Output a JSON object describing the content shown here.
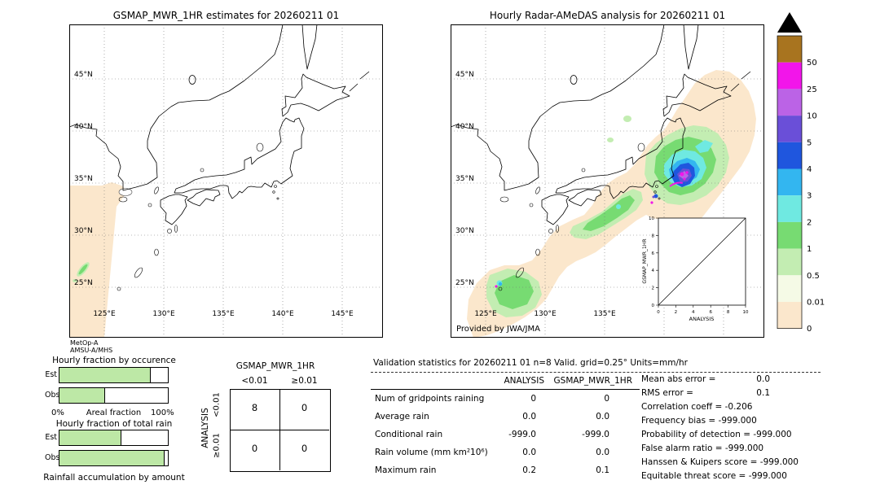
{
  "left_map": {
    "title": "GSMAP_MWR_1HR estimates for 20260211 01",
    "sensor_line1": "MetOp-A",
    "sensor_line2": "AMSU-A/MHS"
  },
  "right_map": {
    "title": "Hourly Radar-AMeDAS analysis for 20260211 01",
    "credit": "Provided by JWA/JMA"
  },
  "grid": {
    "lat_labels": [
      "45°N",
      "40°N",
      "35°N",
      "30°N",
      "25°N"
    ],
    "lon_labels": [
      "125°E",
      "130°E",
      "135°E",
      "140°E",
      "145°E"
    ]
  },
  "inset": {
    "y_label": "GSMAP_MWR_1HR",
    "x_label": "ANALYSIS",
    "ticks": [
      "0",
      "2",
      "4",
      "6",
      "8",
      "10"
    ]
  },
  "colorbar": {
    "units": "mm/hr",
    "labels": [
      "50",
      "25",
      "10",
      "5",
      "4",
      "3",
      "2",
      "1",
      "0.5",
      "0.01",
      "0"
    ],
    "colors_top_to_bottom": [
      "#A8741F",
      "#F215EA",
      "#BB63E6",
      "#6A4FD8",
      "#1F56DE",
      "#33B6F0",
      "#6FE9E1",
      "#77DB72",
      "#C3EDB2",
      "#F5FAE6",
      "#FBE7CC"
    ]
  },
  "fractions": {
    "occurrence_title": "Hourly fraction by occurence",
    "total_title": "Hourly fraction of total rain",
    "areal_label": "Areal fraction",
    "amount_label": "Rainfall accumulation by amount",
    "pct0": "0%",
    "pct100": "100%",
    "est_label": "Est",
    "obs_label": "Obs",
    "occurrence": {
      "est": 0.84,
      "obs": 0.42
    },
    "total": {
      "est": 0.57,
      "obs": 0.97
    }
  },
  "contingency": {
    "title": "GSMAP_MWR_1HR",
    "col_headers": [
      "<0.01",
      "≥0.01"
    ],
    "row_headers": [
      "<0.01",
      "≥0.01"
    ],
    "side_label": "ANALYSIS",
    "values": [
      [
        "8",
        "0"
      ],
      [
        "0",
        "0"
      ]
    ]
  },
  "stats": {
    "title": "Validation statistics for 20260211 01  n=8 Valid. grid=0.25°  Units=mm/hr",
    "col1": "ANALYSIS",
    "col2": "GSMAP_MWR_1HR",
    "rows": [
      {
        "label": "Num of gridpoints raining",
        "analysis": "0",
        "gsmap": "0"
      },
      {
        "label": "Average rain",
        "analysis": "0.0",
        "gsmap": "0.0"
      },
      {
        "label": "Conditional rain",
        "analysis": "-999.0",
        "gsmap": "-999.0"
      },
      {
        "label": "Rain volume (mm km²10⁶)",
        "analysis": "0.0",
        "gsmap": "0.0"
      },
      {
        "label": "Maximum rain",
        "analysis": "0.2",
        "gsmap": "0.1"
      }
    ],
    "extra": [
      {
        "label": "Mean abs error =",
        "value": "0.0"
      },
      {
        "label": "RMS error =",
        "value": "0.1"
      },
      {
        "label": "Correlation coeff = -0.206",
        "value": ""
      },
      {
        "label": "Frequency bias = -999.000",
        "value": ""
      },
      {
        "label": "Probability of detection = -999.000",
        "value": ""
      },
      {
        "label": "False alarm ratio = -999.000",
        "value": ""
      },
      {
        "label": "Hanssen & Kuipers score = -999.000",
        "value": ""
      },
      {
        "label": "Equitable threat score = -999.000",
        "value": ""
      }
    ]
  },
  "chart_data": [
    {
      "type": "heatmap",
      "title": "GSMAP_MWR_1HR estimates for 20260211 01",
      "x_ticks": [
        "125°E",
        "130°E",
        "135°E",
        "140°E",
        "145°E"
      ],
      "y_ticks": [
        "25°N",
        "30°N",
        "35°N",
        "40°N",
        "45°N"
      ],
      "legend_position": "right colorbar",
      "notes": "MetOp-A AMSU-A/MHS swath wedge west of Kyushu with ~0 mm/hr (peach) and a thin 0.5-1 mm/hr green streak near 27N 123E"
    },
    {
      "type": "heatmap",
      "title": "Hourly Radar-AMeDAS analysis for 20260211 01",
      "x_ticks": [
        "125°E",
        "130°E",
        "135°E"
      ],
      "y_ticks": [
        "25°N",
        "30°N",
        "35°N",
        "40°N",
        "45°N"
      ],
      "notes": "Broad 0-0.5 mm/hr rain shield from southwest islands northeast to east of Hokkaido; embedded 1-5 mm/hr cells; cores 10-50 mm/hr (blue/purple/magenta) offshore east of Honshu near 35-37N 140-142E; small intense cell near 25.5N 126E"
    },
    {
      "type": "bar",
      "title": "Hourly fraction by occurence",
      "categories": [
        "Est",
        "Obs"
      ],
      "values": [
        0.84,
        0.42
      ],
      "xlabel": "Areal fraction",
      "xlim": [
        0,
        1
      ]
    },
    {
      "type": "bar",
      "title": "Hourly fraction of total rain",
      "categories": [
        "Est",
        "Obs"
      ],
      "values": [
        0.57,
        0.97
      ],
      "xlabel": "Rainfall accumulation by amount",
      "xlim": [
        0,
        1
      ]
    },
    {
      "type": "table",
      "title": "Contingency table GSMAP_MWR_1HR vs ANALYSIS",
      "columns": [
        "<0.01",
        "≥0.01"
      ],
      "row_headers": [
        "<0.01",
        "≥0.01"
      ],
      "rows": [
        [
          "8",
          "0"
        ],
        [
          "0",
          "0"
        ]
      ]
    },
    {
      "type": "table",
      "title": "Validation statistics for 20260211 01 n=8 Valid. grid=0.25° Units=mm/hr",
      "columns": [
        "",
        "ANALYSIS",
        "GSMAP_MWR_1HR"
      ],
      "rows": [
        [
          "Num of gridpoints raining",
          "0",
          "0"
        ],
        [
          "Average rain",
          "0.0",
          "0.0"
        ],
        [
          "Conditional rain",
          "-999.0",
          "-999.0"
        ],
        [
          "Rain volume (mm km²10⁶)",
          "0.0",
          "0.0"
        ],
        [
          "Maximum rain",
          "0.2",
          "0.1"
        ]
      ],
      "extra_stats": {
        "Mean abs error": 0.0,
        "RMS error": 0.1,
        "Correlation coeff": -0.206,
        "Frequency bias": -999.0,
        "Probability of detection": -999.0,
        "False alarm ratio": -999.0,
        "Hanssen & Kuipers score": -999.0,
        "Equitable threat score": -999.0
      }
    },
    {
      "type": "scatter",
      "title": "inset scatter",
      "xlabel": "ANALYSIS",
      "ylabel": "GSMAP_MWR_1HR",
      "xlim": [
        0,
        10
      ],
      "ylim": [
        0,
        10
      ],
      "points": [],
      "notes": "identity diagonal line only, no visible points"
    },
    {
      "type": "colorbar",
      "levels": [
        0,
        0.01,
        0.5,
        1,
        2,
        3,
        4,
        5,
        10,
        25,
        50
      ],
      "units": "mm/hr",
      "colors_low_to_high": [
        "#FBE7CC",
        "#F5FAE6",
        "#C3EDB2",
        "#77DB72",
        "#6FE9E1",
        "#33B6F0",
        "#1F56DE",
        "#6A4FD8",
        "#BB63E6",
        "#F215EA",
        "#A8741F"
      ]
    }
  ]
}
